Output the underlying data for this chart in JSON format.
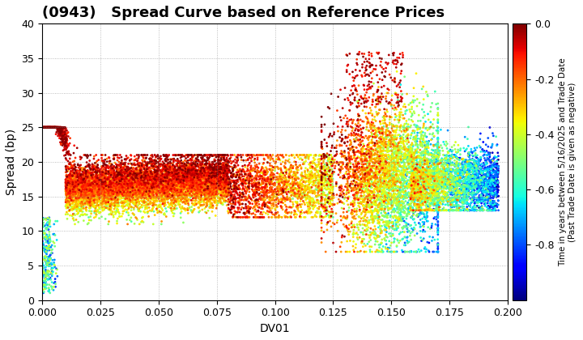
{
  "title": "(0943)   Spread Curve based on Reference Prices",
  "xlabel": "DV01",
  "ylabel": "Spread (bp)",
  "colorbar_label": "Time in years between 5/16/2025 and Trade Date\n(Past Trade Date is given as negative)",
  "xlim": [
    0.0,
    0.2
  ],
  "ylim": [
    0,
    40
  ],
  "xticks": [
    0.0,
    0.025,
    0.05,
    0.075,
    0.1,
    0.125,
    0.15,
    0.175,
    0.2
  ],
  "yticks": [
    0,
    5,
    10,
    15,
    20,
    25,
    30,
    35,
    40
  ],
  "clim": [
    -1.0,
    0.0
  ],
  "cticks": [
    0.0,
    -0.2,
    -0.4,
    -0.6,
    -0.8
  ],
  "cticklabels": [
    "0.0",
    "-0.2",
    "-0.4",
    "-0.6",
    "-0.8"
  ],
  "colormap": "jet",
  "background_color": "#ffffff",
  "grid_color": "#888888",
  "title_fontsize": 13,
  "axis_fontsize": 10,
  "point_size": 4,
  "seed": 12345
}
